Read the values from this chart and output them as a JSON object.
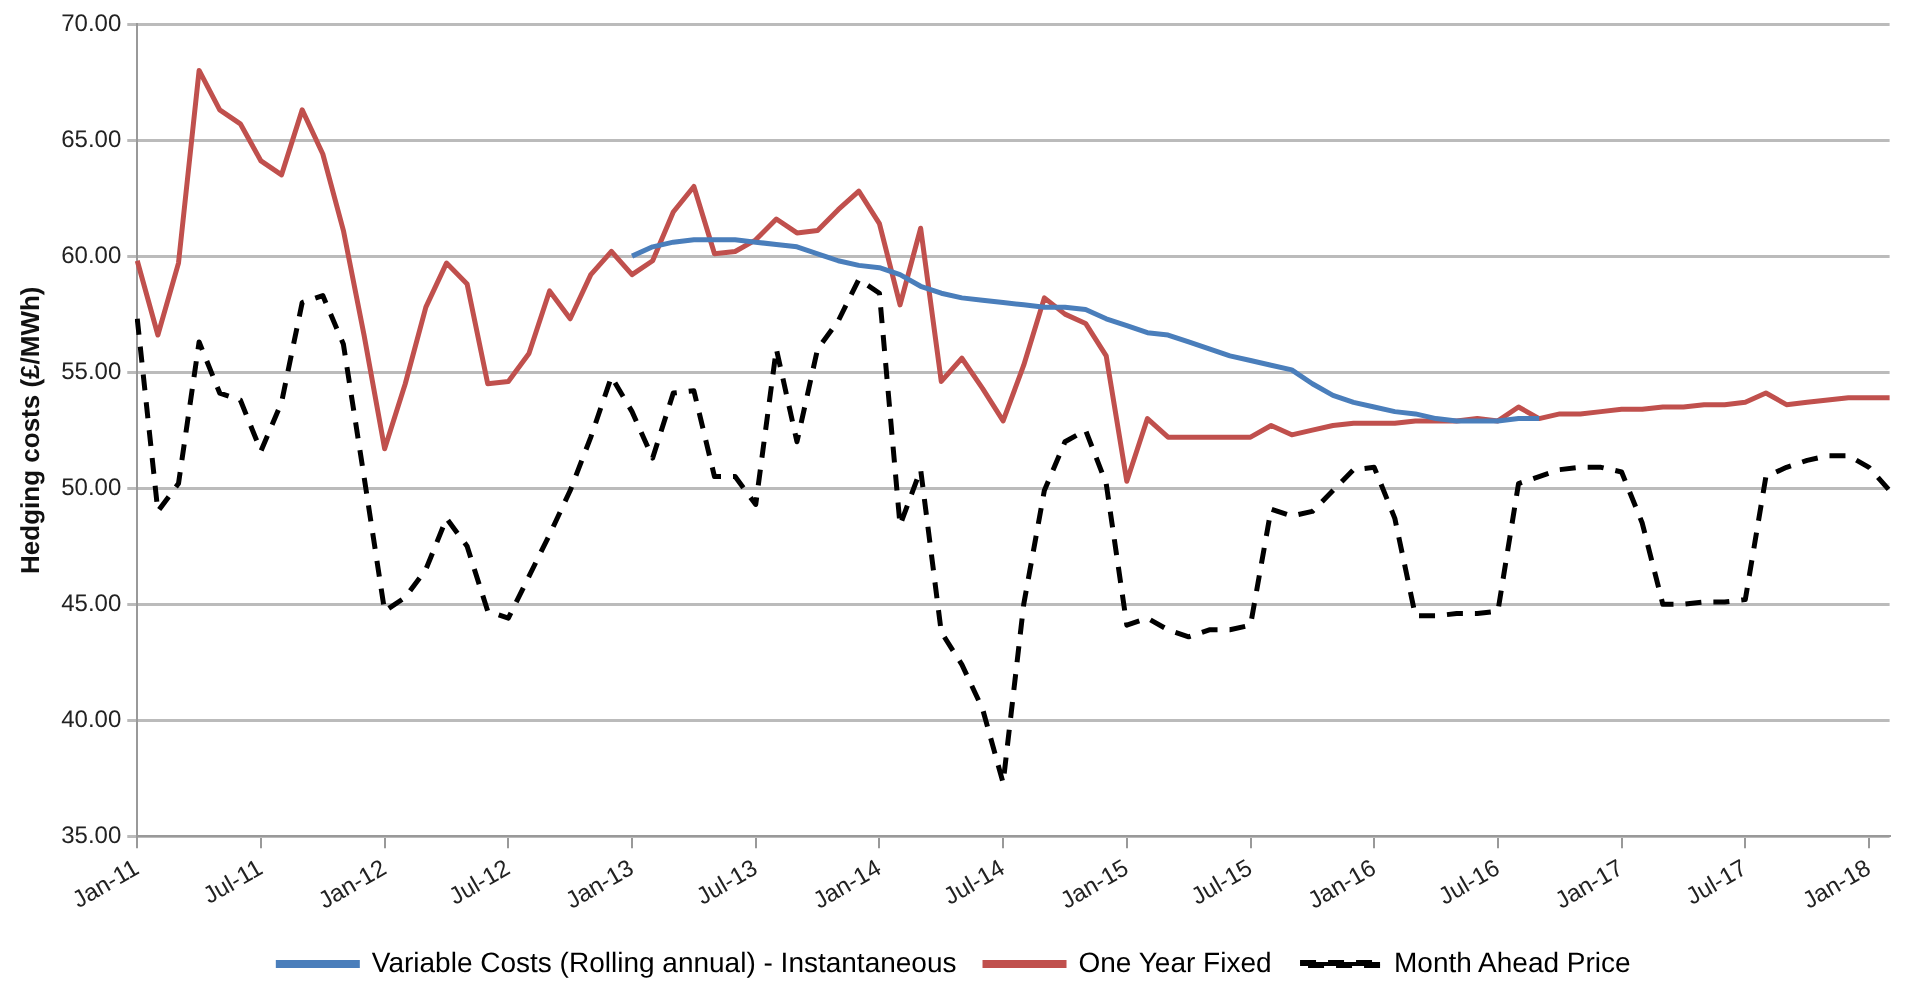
{
  "chart_data": {
    "type": "line",
    "ylabel": "Hedging costs (£/MWh)",
    "categories": [
      "Jan-11",
      null,
      null,
      null,
      null,
      null,
      "Jul-11",
      null,
      null,
      null,
      null,
      null,
      "Jan-12",
      null,
      null,
      null,
      null,
      null,
      "Jul-12",
      null,
      null,
      null,
      null,
      null,
      "Jan-13",
      null,
      null,
      null,
      null,
      null,
      "Jul-13",
      null,
      null,
      null,
      null,
      null,
      "Jan-14",
      null,
      null,
      null,
      null,
      null,
      "Jul-14",
      null,
      null,
      null,
      null,
      null,
      "Jan-15",
      null,
      null,
      null,
      null,
      null,
      "Jul-15",
      null,
      null,
      null,
      null,
      null,
      "Jan-16",
      null,
      null,
      null,
      null,
      null,
      "Jul-16",
      null,
      null,
      null,
      null,
      null,
      "Jan-17",
      null,
      null,
      null,
      null,
      null,
      "Jul-17",
      null,
      null,
      null,
      null,
      null,
      "Jan-18",
      null
    ],
    "series": [
      {
        "name": "Variable Costs (Rolling annual) - Instantaneous",
        "color": "#4a7ebb",
        "values": [
          null,
          null,
          null,
          null,
          null,
          null,
          null,
          null,
          null,
          null,
          null,
          null,
          null,
          null,
          null,
          null,
          null,
          null,
          null,
          null,
          null,
          null,
          null,
          null,
          60.0,
          60.4,
          60.6,
          60.7,
          60.7,
          60.7,
          60.6,
          60.5,
          60.4,
          60.1,
          59.8,
          59.6,
          59.5,
          59.2,
          58.7,
          58.4,
          58.2,
          58.1,
          58.0,
          57.9,
          57.8,
          57.8,
          57.7,
          57.3,
          57.0,
          56.7,
          56.6,
          56.3,
          56.0,
          55.7,
          55.5,
          55.3,
          55.1,
          54.5,
          54.0,
          53.7,
          53.5,
          53.3,
          53.2,
          53.0,
          52.9,
          52.9,
          52.9,
          53.0,
          53.0,
          null,
          null,
          null,
          null,
          null,
          null,
          null,
          null,
          null,
          null,
          null,
          null,
          null,
          null,
          null,
          null,
          null
        ]
      },
      {
        "name": "One Year Fixed",
        "color": "#c0504d",
        "values": [
          59.8,
          56.6,
          59.7,
          68.0,
          66.3,
          65.7,
          64.1,
          63.5,
          66.3,
          64.4,
          61.1,
          56.6,
          51.7,
          54.5,
          57.8,
          59.7,
          58.8,
          54.5,
          54.6,
          55.8,
          58.5,
          57.3,
          59.2,
          60.2,
          59.2,
          59.8,
          61.9,
          63.0,
          60.1,
          60.2,
          60.7,
          61.6,
          61.0,
          61.1,
          62.0,
          62.8,
          61.4,
          57.9,
          61.2,
          54.6,
          55.6,
          54.3,
          52.9,
          55.3,
          58.2,
          57.5,
          57.1,
          55.7,
          50.3,
          53.0,
          52.2,
          52.2,
          52.2,
          52.2,
          52.2,
          52.7,
          52.3,
          52.5,
          52.7,
          52.8,
          52.8,
          52.8,
          52.9,
          52.9,
          52.9,
          53.0,
          52.9,
          53.5,
          53.0,
          53.2,
          53.2,
          53.3,
          53.4,
          53.4,
          53.5,
          53.5,
          53.6,
          53.6,
          53.7,
          54.1,
          53.6,
          53.7,
          53.8,
          53.9,
          53.9,
          53.9
        ]
      },
      {
        "name": "Month Ahead Price",
        "color": "#000000",
        "line_style": "dashed",
        "values": [
          57.3,
          49.0,
          50.2,
          56.3,
          54.1,
          53.8,
          51.6,
          53.7,
          58.0,
          58.3,
          56.2,
          50.5,
          44.7,
          45.3,
          46.5,
          48.7,
          47.5,
          44.7,
          44.4,
          46.2,
          48.0,
          49.9,
          52.2,
          54.8,
          53.3,
          51.3,
          54.1,
          54.2,
          50.5,
          50.5,
          49.3,
          56.0,
          52.0,
          56.0,
          57.2,
          59.0,
          58.4,
          48.4,
          50.8,
          43.8,
          42.4,
          40.5,
          37.3,
          45.0,
          49.9,
          52.0,
          52.5,
          50.2,
          44.1,
          44.4,
          43.9,
          43.6,
          43.9,
          43.9,
          44.1,
          49.1,
          48.8,
          49.0,
          49.9,
          50.8,
          50.9,
          48.7,
          44.5,
          44.5,
          44.6,
          44.6,
          44.7,
          50.2,
          50.5,
          50.8,
          50.9,
          50.9,
          50.7,
          48.5,
          45.0,
          45.0,
          45.1,
          45.1,
          45.2,
          50.5,
          50.9,
          51.2,
          51.4,
          51.4,
          50.9,
          49.9
        ]
      }
    ],
    "ylim": [
      35,
      70
    ],
    "yticks": [
      {
        "value": 35,
        "label": "35.00"
      },
      {
        "value": 40,
        "label": "40.00"
      },
      {
        "value": 45,
        "label": "45.00"
      },
      {
        "value": 50,
        "label": "50.00"
      },
      {
        "value": 55,
        "label": "55.00"
      },
      {
        "value": 60,
        "label": "60.00"
      },
      {
        "value": 65,
        "label": "65.00"
      },
      {
        "value": 70,
        "label": "70.00"
      }
    ],
    "grid": "y",
    "legend": "bottom",
    "line_style": "solid",
    "marker": "none"
  }
}
